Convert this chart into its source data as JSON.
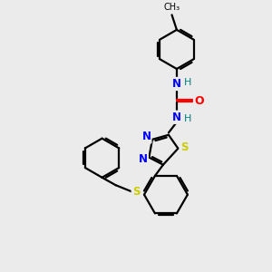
{
  "bg_color": "#ebebeb",
  "bond_color": "#000000",
  "N_color": "#0000ff",
  "O_color": "#ff0000",
  "S_color": "#cccc00",
  "H_color": "#008080",
  "line_width": 1.6,
  "fig_size": [
    3.0,
    3.0
  ],
  "dpi": 100,
  "xlim": [
    0,
    10
  ],
  "ylim": [
    0,
    10
  ]
}
